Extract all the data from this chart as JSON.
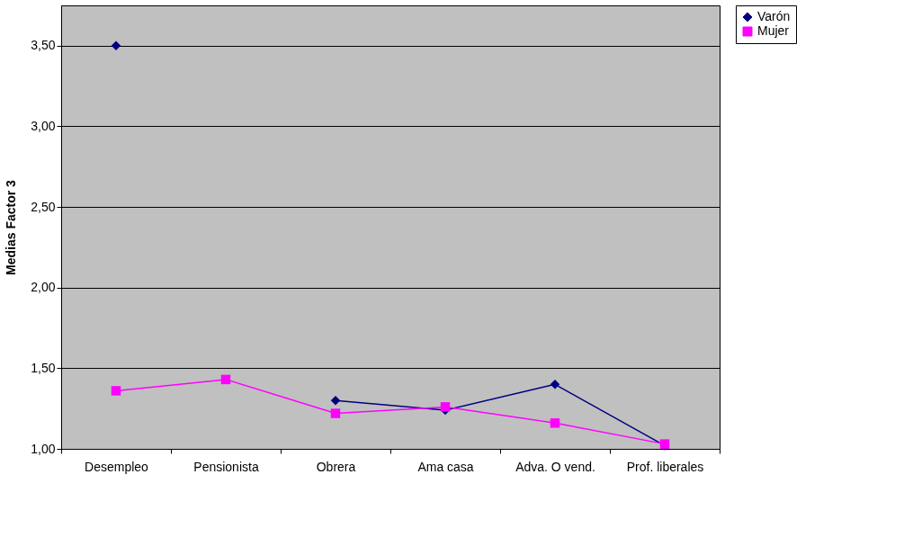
{
  "chart_data": {
    "type": "line",
    "ylabel": "Medias Factor 3",
    "categories": [
      "Desempleo",
      "Pensionista",
      "Obrera",
      "Ama casa",
      "Adva. O vend.",
      "Prof. liberales"
    ],
    "series": [
      {
        "name": "Varón",
        "color": "#000080",
        "marker": "diamond",
        "values": [
          3.5,
          null,
          1.3,
          1.24,
          1.4,
          1.02
        ]
      },
      {
        "name": "Mujer",
        "color": "#ff00ff",
        "marker": "square",
        "values": [
          1.36,
          1.43,
          1.22,
          1.26,
          1.16,
          1.03
        ]
      }
    ],
    "ylim": [
      1.0,
      3.75
    ],
    "yticks": [
      {
        "value": 1.0,
        "label": "1,00"
      },
      {
        "value": 1.5,
        "label": "1,50"
      },
      {
        "value": 2.0,
        "label": "2,00"
      },
      {
        "value": 2.5,
        "label": "2,50"
      },
      {
        "value": 3.0,
        "label": "3,00"
      },
      {
        "value": 3.5,
        "label": "3,50"
      }
    ],
    "grid": "y",
    "legend": "right",
    "line_style": "solid"
  }
}
